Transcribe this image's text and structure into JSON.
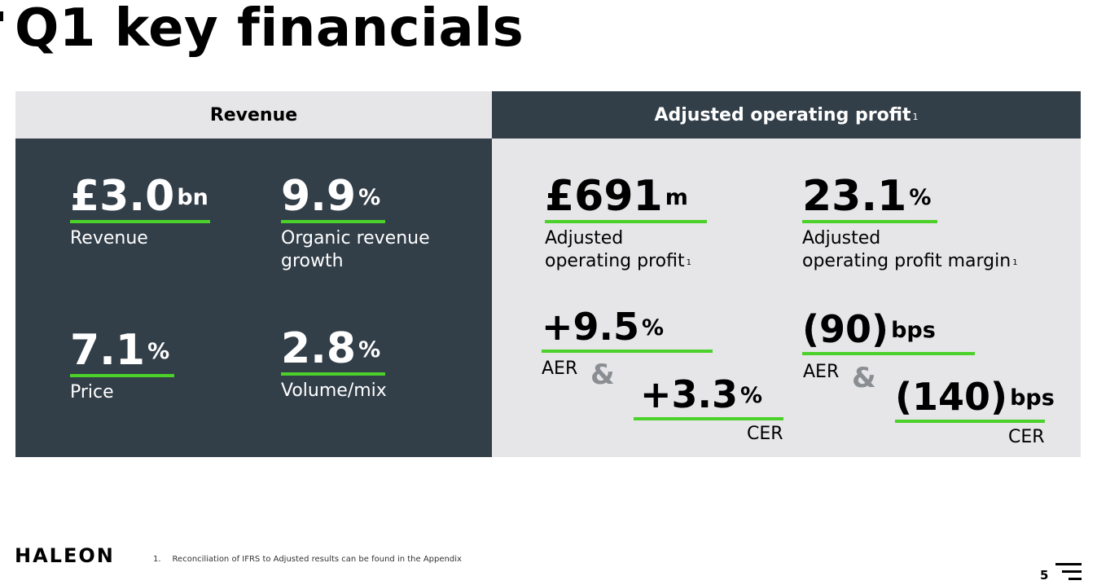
{
  "slide": {
    "title": "Q1 key financials",
    "page_number": "5"
  },
  "revenue_panel": {
    "heading": "Revenue",
    "metrics": [
      {
        "value": "£3.0",
        "suffix": "bn",
        "label": "Revenue"
      },
      {
        "value": "9.9",
        "suffix": "%",
        "label_line1": "Organic revenue",
        "label_line2": "growth"
      },
      {
        "value": "7.1",
        "suffix": "%",
        "label": "Price"
      },
      {
        "value": "2.8",
        "suffix": "%",
        "label": "Volume/mix"
      }
    ]
  },
  "profit_panel": {
    "heading": "Adjusted operating profit",
    "heading_note": "1",
    "profit": {
      "value": "£691",
      "suffix": "m",
      "label_line1": "Adjusted",
      "label_line2": "operating profit",
      "note": "1"
    },
    "margin": {
      "value": "23.1",
      "suffix": "%",
      "label_line1": "Adjusted",
      "label_line2": "operating profit margin",
      "note": "1"
    },
    "profit_aer": {
      "value": "+9.5",
      "suffix": "%",
      "tag": "AER"
    },
    "profit_cer": {
      "value": "+3.3",
      "suffix": "%",
      "tag": "CER"
    },
    "margin_aer": {
      "value": "(90)",
      "suffix": "bps",
      "tag": "AER"
    },
    "margin_cer": {
      "value": "(140)",
      "suffix": "bps",
      "tag": "CER"
    },
    "ampersand": "&"
  },
  "footer": {
    "logo": "HALEON",
    "footnote_number": "1.",
    "footnote_text": "Reconciliation of IFRS to Adjusted results can be found in the Appendix"
  },
  "colors": {
    "dark_panel": "#323e48",
    "light_panel": "#e6e6e8",
    "accent_green": "#4cd12a"
  }
}
